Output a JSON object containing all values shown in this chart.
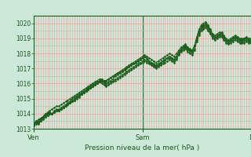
{
  "bg_color": "#cce8d8",
  "plot_bg_color": "#cce8d8",
  "grid_color_major": "#ff9999",
  "grid_color_minor": "#99cc99",
  "line_color": "#1a5c1a",
  "ylim": [
    1013,
    1020.5
  ],
  "yticks": [
    1013,
    1014,
    1015,
    1016,
    1017,
    1018,
    1019,
    1020
  ],
  "xtick_labels": [
    "Ven",
    "Sam",
    "D"
  ],
  "xtick_positions": [
    0,
    0.5,
    1.0
  ],
  "xlabel": "Pression niveau de la mer( hPa )",
  "total_points": 97,
  "series": [
    [
      1013.3,
      1013.5,
      1013.4,
      1013.6,
      1013.8,
      1013.9,
      1014.0,
      1014.1,
      1014.0,
      1014.2,
      1014.3,
      1014.2,
      1014.3,
      1014.4,
      1014.5,
      1014.6,
      1014.7,
      1014.8,
      1014.9,
      1015.1,
      1015.2,
      1015.3,
      1015.4,
      1015.5,
      1015.6,
      1015.7,
      1015.8,
      1015.9,
      1016.0,
      1016.1,
      1016.2,
      1016.1,
      1016.2,
      1016.3,
      1016.4,
      1016.5,
      1016.6,
      1016.7,
      1016.7,
      1016.8,
      1016.9,
      1017.0,
      1017.1,
      1017.2,
      1017.3,
      1017.4,
      1017.5,
      1017.6,
      1017.7,
      1017.8,
      1017.7,
      1017.5,
      1017.3,
      1017.2,
      1017.1,
      1017.2,
      1017.3,
      1017.5,
      1017.6,
      1017.7,
      1017.8,
      1017.7,
      1017.6,
      1017.8,
      1018.0,
      1018.2,
      1018.4,
      1018.5,
      1018.3,
      1018.2,
      1018.1,
      1018.5,
      1019.0,
      1019.5,
      1019.8,
      1019.9,
      1020.0,
      1019.8,
      1019.5,
      1019.2,
      1019.0,
      1019.1,
      1019.2,
      1019.3,
      1019.0,
      1018.9,
      1018.8,
      1018.9,
      1019.0,
      1019.1,
      1019.0,
      1018.9,
      1018.9,
      1019.0,
      1019.0,
      1018.9,
      1018.9
    ],
    [
      1013.3,
      1013.4,
      1013.5,
      1013.7,
      1013.8,
      1014.0,
      1014.0,
      1014.1,
      1014.0,
      1014.1,
      1014.2,
      1014.3,
      1014.4,
      1014.5,
      1014.6,
      1014.7,
      1014.8,
      1015.0,
      1015.1,
      1015.2,
      1015.3,
      1015.4,
      1015.5,
      1015.6,
      1015.7,
      1015.8,
      1015.9,
      1016.0,
      1016.1,
      1016.2,
      1016.2,
      1016.1,
      1016.0,
      1016.1,
      1016.2,
      1016.3,
      1016.5,
      1016.6,
      1016.7,
      1016.8,
      1016.9,
      1017.0,
      1017.1,
      1017.2,
      1017.3,
      1017.4,
      1017.5,
      1017.6,
      1017.7,
      1017.8,
      1017.6,
      1017.5,
      1017.4,
      1017.3,
      1017.2,
      1017.3,
      1017.4,
      1017.5,
      1017.6,
      1017.7,
      1017.8,
      1017.7,
      1017.6,
      1017.8,
      1018.1,
      1018.3,
      1018.4,
      1018.5,
      1018.3,
      1018.2,
      1018.2,
      1018.5,
      1019.0,
      1019.4,
      1019.7,
      1019.8,
      1019.9,
      1019.7,
      1019.5,
      1019.2,
      1019.1,
      1019.2,
      1019.3,
      1019.3,
      1019.1,
      1018.9,
      1018.8,
      1018.9,
      1019.0,
      1019.1,
      1019.0,
      1018.9,
      1018.9,
      1018.9,
      1019.0,
      1018.9,
      1018.8
    ],
    [
      1013.2,
      1013.3,
      1013.4,
      1013.5,
      1013.7,
      1013.8,
      1013.9,
      1014.0,
      1014.0,
      1014.1,
      1014.2,
      1014.2,
      1014.3,
      1014.4,
      1014.5,
      1014.6,
      1014.7,
      1014.9,
      1015.0,
      1015.1,
      1015.2,
      1015.3,
      1015.4,
      1015.5,
      1015.6,
      1015.7,
      1015.8,
      1015.9,
      1016.0,
      1016.1,
      1016.1,
      1016.0,
      1015.9,
      1016.0,
      1016.1,
      1016.2,
      1016.3,
      1016.4,
      1016.5,
      1016.6,
      1016.7,
      1016.8,
      1016.9,
      1017.0,
      1017.1,
      1017.2,
      1017.3,
      1017.4,
      1017.5,
      1017.6,
      1017.5,
      1017.4,
      1017.3,
      1017.2,
      1017.1,
      1017.2,
      1017.3,
      1017.5,
      1017.6,
      1017.7,
      1017.7,
      1017.6,
      1017.5,
      1017.7,
      1018.0,
      1018.2,
      1018.3,
      1018.4,
      1018.2,
      1018.1,
      1018.0,
      1018.3,
      1018.9,
      1019.3,
      1019.6,
      1019.7,
      1019.8,
      1019.6,
      1019.4,
      1019.1,
      1019.0,
      1019.1,
      1019.2,
      1019.2,
      1019.0,
      1018.8,
      1018.7,
      1018.8,
      1018.9,
      1019.0,
      1018.9,
      1018.8,
      1018.8,
      1018.8,
      1018.9,
      1018.8,
      1018.8
    ],
    [
      1013.3,
      1013.5,
      1013.6,
      1013.7,
      1013.8,
      1013.9,
      1014.1,
      1014.2,
      1014.3,
      1014.4,
      1014.5,
      1014.5,
      1014.6,
      1014.7,
      1014.8,
      1014.9,
      1015.0,
      1015.1,
      1015.2,
      1015.3,
      1015.4,
      1015.5,
      1015.6,
      1015.7,
      1015.8,
      1015.9,
      1016.0,
      1016.1,
      1016.2,
      1016.3,
      1016.3,
      1016.2,
      1016.2,
      1016.3,
      1016.4,
      1016.5,
      1016.6,
      1016.7,
      1016.8,
      1016.9,
      1017.0,
      1017.1,
      1017.2,
      1017.3,
      1017.4,
      1017.5,
      1017.6,
      1017.7,
      1017.8,
      1017.9,
      1017.8,
      1017.7,
      1017.6,
      1017.5,
      1017.4,
      1017.5,
      1017.6,
      1017.7,
      1017.8,
      1017.9,
      1018.0,
      1017.9,
      1017.8,
      1018.0,
      1018.2,
      1018.4,
      1018.5,
      1018.6,
      1018.4,
      1018.3,
      1018.2,
      1018.5,
      1019.1,
      1019.6,
      1019.9,
      1020.0,
      1020.1,
      1019.9,
      1019.6,
      1019.3,
      1019.2,
      1019.3,
      1019.4,
      1019.4,
      1019.2,
      1019.0,
      1018.9,
      1019.0,
      1019.1,
      1019.2,
      1019.1,
      1019.0,
      1019.0,
      1019.0,
      1019.1,
      1019.0,
      1019.0
    ],
    [
      1013.4,
      1013.4,
      1013.3,
      1013.5,
      1013.6,
      1013.8,
      1013.9,
      1014.0,
      1014.0,
      1014.1,
      1014.2,
      1014.2,
      1014.3,
      1014.4,
      1014.5,
      1014.6,
      1014.7,
      1014.8,
      1014.9,
      1015.0,
      1015.1,
      1015.3,
      1015.4,
      1015.5,
      1015.6,
      1015.7,
      1015.8,
      1015.9,
      1016.0,
      1016.1,
      1016.0,
      1015.9,
      1015.8,
      1015.9,
      1016.0,
      1016.1,
      1016.2,
      1016.3,
      1016.4,
      1016.5,
      1016.6,
      1016.7,
      1016.8,
      1016.9,
      1017.0,
      1017.1,
      1017.2,
      1017.3,
      1017.4,
      1017.5,
      1017.4,
      1017.3,
      1017.2,
      1017.1,
      1017.0,
      1017.1,
      1017.2,
      1017.3,
      1017.4,
      1017.5,
      1017.6,
      1017.5,
      1017.4,
      1017.6,
      1017.9,
      1018.1,
      1018.2,
      1018.3,
      1018.1,
      1018.0,
      1017.9,
      1018.2,
      1018.8,
      1019.2,
      1019.5,
      1019.6,
      1019.7,
      1019.5,
      1019.3,
      1019.0,
      1018.9,
      1019.0,
      1019.1,
      1019.1,
      1018.9,
      1018.7,
      1018.6,
      1018.7,
      1018.8,
      1018.9,
      1018.8,
      1018.7,
      1018.7,
      1018.7,
      1018.8,
      1018.7,
      1018.7
    ]
  ]
}
